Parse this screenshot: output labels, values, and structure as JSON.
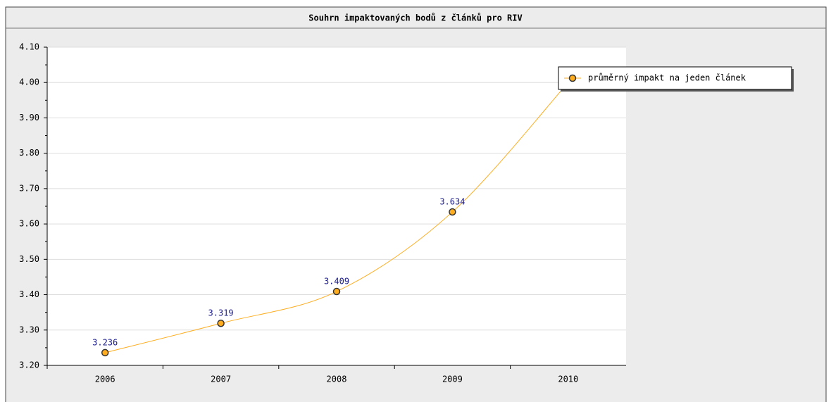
{
  "chart_data": {
    "type": "line",
    "title": "Souhrn impaktovaných bodů z článků pro RIV",
    "categories": [
      "2006",
      "2007",
      "2008",
      "2009",
      "2010"
    ],
    "series": [
      {
        "name": "průměrný impakt na jeden článek",
        "color": "#ffad1f",
        "values": [
          3.236,
          3.319,
          3.409,
          3.634,
          4.0
        ]
      }
    ],
    "ylim": [
      3.2,
      4.1
    ],
    "yticks": [
      {
        "value": 3.2,
        "label": "3.20"
      },
      {
        "value": 3.3,
        "label": "3.30"
      },
      {
        "value": 3.4,
        "label": "3.40"
      },
      {
        "value": 3.5,
        "label": "3.50"
      },
      {
        "value": 3.6,
        "label": "3.60"
      },
      {
        "value": 3.7,
        "label": "3.70"
      },
      {
        "value": 3.8,
        "label": "3.80"
      },
      {
        "value": 3.9,
        "label": "3.90"
      },
      {
        "value": 4.0,
        "label": "4.00"
      },
      {
        "value": 4.1,
        "label": "4.10"
      }
    ],
    "grid": true,
    "legend": "upper right"
  }
}
